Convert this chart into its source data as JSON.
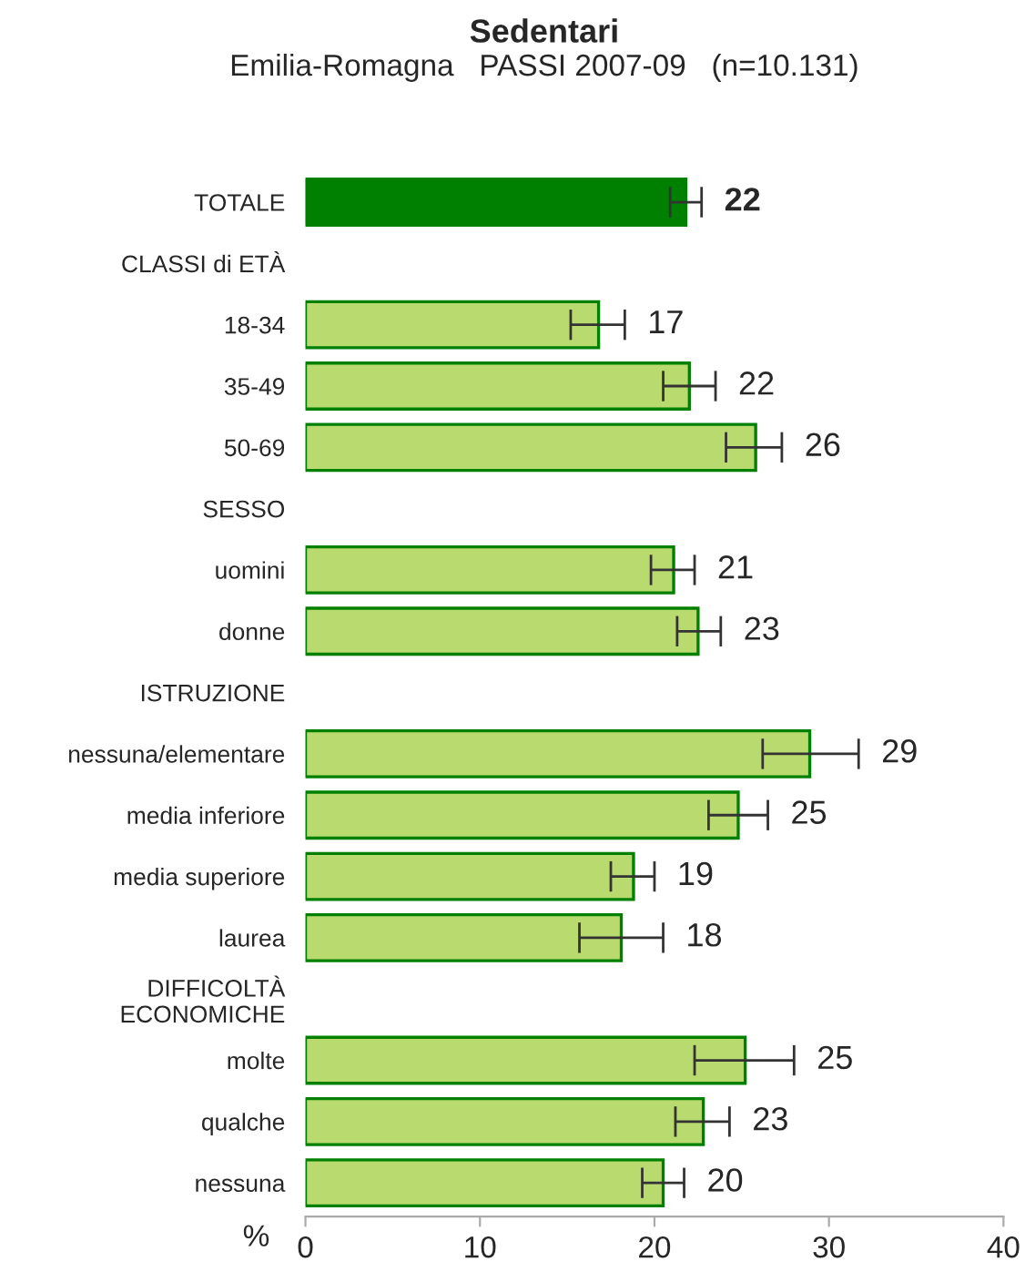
{
  "chart_data": {
    "type": "bar",
    "orientation": "horizontal",
    "title": "Sedentari",
    "subtitle": "Emilia-Romagna   PASSI 2007-09   (n=10.131)",
    "xlabel": "%",
    "categories": [
      "TOTALE",
      "CLASSI di ETÀ",
      "18-34",
      "35-49",
      "50-69",
      "SESSO",
      "uomini",
      "donne",
      "ISTRUZIONE",
      "nessuna/elementare",
      "media inferiore",
      "media superiore",
      "laurea",
      "DIFFICOLTÀ\nECONOMICHE",
      "molte",
      "qualche",
      "nessuna"
    ],
    "values": [
      21.8,
      null,
      16.8,
      22.0,
      25.8,
      null,
      21.1,
      22.5,
      null,
      28.9,
      24.8,
      18.8,
      18.1,
      null,
      25.2,
      22.8,
      20.5
    ],
    "errors": [
      [
        20.9,
        22.7
      ],
      null,
      [
        15.2,
        18.3
      ],
      [
        20.5,
        23.5
      ],
      [
        24.1,
        27.3
      ],
      null,
      [
        19.8,
        22.3
      ],
      [
        21.3,
        23.8
      ],
      null,
      [
        26.2,
        31.7
      ],
      [
        23.1,
        26.5
      ],
      [
        17.5,
        20.0
      ],
      [
        15.7,
        20.5
      ],
      null,
      [
        22.3,
        28.0
      ],
      [
        21.2,
        24.3
      ],
      [
        19.3,
        21.7
      ]
    ],
    "value_labels": [
      "22",
      null,
      "17",
      "22",
      "26",
      null,
      "21",
      "23",
      null,
      "29",
      "25",
      "19",
      "18",
      null,
      "25",
      "23",
      "20"
    ],
    "colors": [
      "#008000",
      null,
      "#b8da6e",
      "#b8da6e",
      "#b8da6e",
      null,
      "#b8da6e",
      "#b8da6e",
      null,
      "#b8da6e",
      "#b8da6e",
      "#b8da6e",
      "#b8da6e",
      null,
      "#b8da6e",
      "#b8da6e",
      "#b8da6e"
    ],
    "xlim": [
      0,
      40
    ],
    "xticks": [
      0,
      10,
      20,
      30,
      40
    ],
    "grid": false,
    "legend": false
  }
}
